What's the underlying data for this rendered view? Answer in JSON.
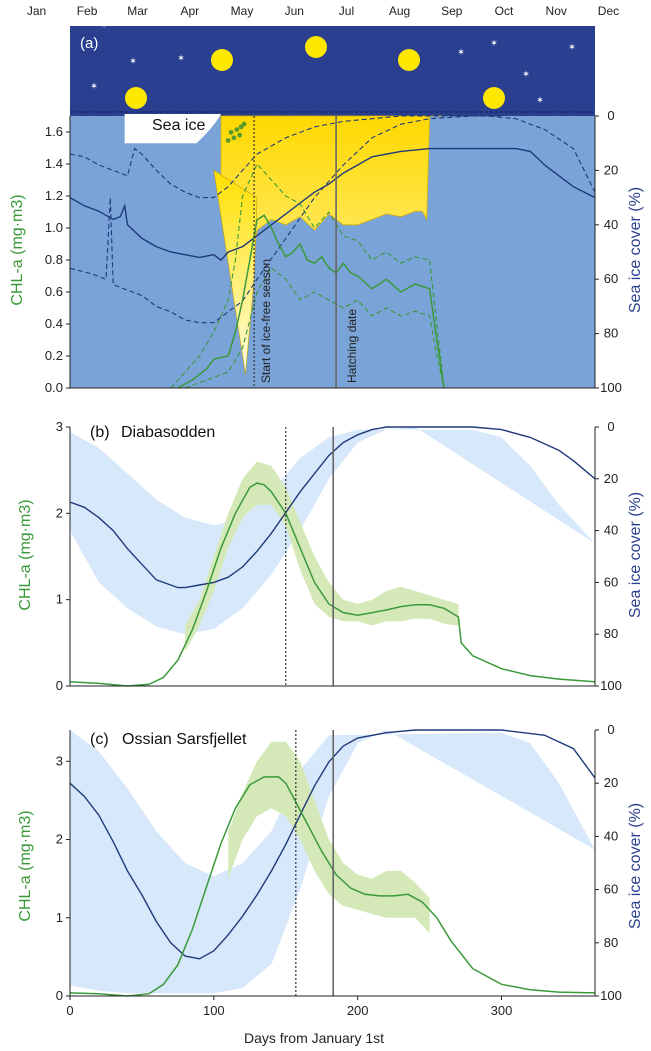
{
  "months": [
    "Jan",
    "Feb",
    "Mar",
    "Apr",
    "May",
    "Jun",
    "Jul",
    "Aug",
    "Sep",
    "Oct",
    "Nov",
    "Dec"
  ],
  "xlabel": "Days from January 1st",
  "colors": {
    "chl": "#3a9a3a",
    "ice": "#1f3a7a",
    "night": "#2a3f8f",
    "panel_a_bg": "#7aa3d8",
    "sun": "#ffe800",
    "band_chl": "#d5e9b8",
    "band_ice": "#d8e8fb"
  },
  "chart_data": [
    {
      "type": "line",
      "panel": "(a)",
      "annotations": [
        "Sea ice",
        "Start of ice-free season",
        "Hatching date"
      ],
      "ylabel": "CHL-a (mg·m3)",
      "ylabel_right": "Sea ice cover (%)",
      "xlim": [
        0,
        365
      ],
      "ylim": [
        0,
        1.7
      ],
      "ylim_right": [
        100,
        0
      ],
      "yticks": [
        "0.0",
        "0.2",
        "0.4",
        "0.6",
        "0.8",
        "1.0",
        "1.2",
        "1.4",
        "1.6"
      ],
      "yticks_right": [
        "0",
        "20",
        "40",
        "60",
        "80",
        "100"
      ],
      "vlines": {
        "ice_free_start": 128,
        "hatching": 185
      },
      "series": [
        {
          "role": "chl",
          "x": [
            75,
            85,
            95,
            100,
            110,
            115,
            120,
            125,
            130,
            135,
            140,
            145,
            150,
            155,
            160,
            165,
            170,
            175,
            180,
            185,
            190,
            195,
            200,
            210,
            220,
            230,
            240,
            250,
            255,
            260
          ],
          "y": [
            0,
            0.05,
            0.12,
            0.18,
            0.2,
            0.35,
            0.55,
            0.8,
            1.05,
            1.08,
            1.0,
            0.9,
            0.82,
            0.85,
            0.9,
            0.8,
            0.78,
            0.82,
            0.75,
            0.72,
            0.78,
            0.72,
            0.7,
            0.62,
            0.68,
            0.6,
            0.65,
            0.62,
            0.3,
            0
          ]
        },
        {
          "role": "chl_lower",
          "x": [
            80,
            95,
            110,
            120,
            130,
            140,
            150,
            160,
            170,
            180,
            190,
            200,
            210,
            220,
            230,
            240,
            250,
            255,
            260
          ],
          "y": [
            0,
            0.05,
            0.1,
            0.25,
            0.6,
            0.75,
            0.68,
            0.55,
            0.6,
            0.55,
            0.5,
            0.55,
            0.45,
            0.5,
            0.45,
            0.48,
            0.45,
            0.2,
            0
          ]
        },
        {
          "role": "chl_upper",
          "x": [
            70,
            80,
            90,
            100,
            110,
            115,
            120,
            130,
            140,
            150,
            160,
            170,
            180,
            190,
            200,
            210,
            220,
            230,
            240,
            250,
            255,
            260
          ],
          "y": [
            0,
            0.1,
            0.2,
            0.35,
            0.55,
            0.8,
            1.2,
            1.4,
            1.3,
            1.2,
            1.15,
            1.0,
            1.1,
            0.95,
            0.92,
            0.8,
            0.85,
            0.78,
            0.82,
            0.8,
            0.4,
            0
          ]
        },
        {
          "role": "ice",
          "x": [
            0,
            10,
            20,
            30,
            35,
            38,
            40,
            50,
            60,
            70,
            80,
            90,
            100,
            105,
            110,
            120,
            130,
            140,
            150,
            160,
            170,
            180,
            190,
            200,
            210,
            230,
            250,
            270,
            290,
            310,
            320,
            330,
            340,
            350,
            365
          ],
          "y": [
            30,
            33,
            35,
            38,
            37,
            33,
            40,
            45,
            48,
            50,
            51,
            52,
            51,
            53,
            50,
            48,
            44,
            40,
            36,
            32,
            28,
            25,
            21,
            18,
            15,
            13,
            12,
            12,
            12,
            12,
            13,
            18,
            22,
            26,
            30
          ]
        },
        {
          "role": "ice_lower",
          "x": [
            0,
            15,
            25,
            28,
            30,
            40,
            50,
            60,
            70,
            80,
            90,
            100,
            110,
            120,
            130,
            150,
            170,
            190,
            210,
            230,
            250,
            280,
            300
          ],
          "y": [
            56,
            58,
            60,
            30,
            62,
            64,
            66,
            70,
            72,
            75,
            76,
            76,
            72,
            68,
            60,
            45,
            30,
            18,
            8,
            3,
            1,
            0,
            0
          ]
        },
        {
          "role": "ice_upper",
          "x": [
            0,
            10,
            20,
            30,
            40,
            45,
            50,
            60,
            70,
            80,
            90,
            100,
            110,
            120,
            130,
            150,
            170,
            190,
            210,
            230,
            250,
            270,
            290,
            310,
            330,
            350,
            365
          ],
          "y": [
            14,
            15,
            18,
            20,
            22,
            12,
            14,
            20,
            25,
            28,
            30,
            30,
            26,
            20,
            14,
            8,
            4,
            2,
            1,
            0,
            0,
            0,
            0,
            1,
            5,
            12,
            28
          ]
        }
      ]
    },
    {
      "type": "line",
      "panel": "(b)",
      "title": "Diabasodden",
      "ylabel": "CHL-a (mg·m3)",
      "ylabel_right": "Sea ice cover (%)",
      "xlim": [
        0,
        365
      ],
      "ylim": [
        0,
        3
      ],
      "ylim_right": [
        100,
        0
      ],
      "yticks": [
        "0",
        "1",
        "2",
        "3"
      ],
      "yticks_right": [
        "0",
        "20",
        "40",
        "60",
        "80",
        "100"
      ],
      "vlines": {
        "ice_free_start": 150,
        "hatching": 183
      },
      "series": [
        {
          "role": "chl",
          "x": [
            0,
            20,
            40,
            55,
            65,
            75,
            85,
            95,
            105,
            115,
            125,
            130,
            135,
            140,
            150,
            160,
            170,
            180,
            190,
            200,
            210,
            220,
            230,
            240,
            250,
            260,
            270,
            272,
            280,
            300,
            320,
            340,
            365
          ],
          "y": [
            0.05,
            0.03,
            0.0,
            0.02,
            0.1,
            0.3,
            0.65,
            1.1,
            1.6,
            2.0,
            2.3,
            2.35,
            2.33,
            2.25,
            2.0,
            1.6,
            1.2,
            0.95,
            0.85,
            0.82,
            0.85,
            0.88,
            0.92,
            0.94,
            0.94,
            0.9,
            0.8,
            0.5,
            0.35,
            0.2,
            0.12,
            0.08,
            0.05
          ]
        },
        {
          "role": "chl_lower",
          "x": [
            80,
            90,
            100,
            110,
            120,
            130,
            140,
            150,
            160,
            170,
            180,
            190,
            200,
            210,
            220,
            230,
            240,
            250,
            260,
            270
          ],
          "y": [
            0.4,
            0.7,
            1.1,
            1.6,
            1.95,
            2.1,
            2.1,
            1.85,
            1.35,
            0.95,
            0.8,
            0.75,
            0.75,
            0.7,
            0.75,
            0.75,
            0.78,
            0.78,
            0.72,
            0.7
          ]
        },
        {
          "role": "chl_upper",
          "x": [
            80,
            90,
            100,
            110,
            120,
            130,
            140,
            150,
            160,
            170,
            180,
            190,
            200,
            210,
            220,
            230,
            240,
            250,
            260,
            270
          ],
          "y": [
            0.7,
            1.0,
            1.5,
            2.0,
            2.4,
            2.6,
            2.55,
            2.3,
            1.9,
            1.5,
            1.2,
            1.0,
            0.95,
            1.0,
            1.1,
            1.15,
            1.1,
            1.05,
            1.0,
            0.95
          ]
        },
        {
          "role": "ice",
          "x": [
            0,
            10,
            20,
            30,
            40,
            50,
            60,
            70,
            75,
            80,
            90,
            100,
            110,
            120,
            130,
            140,
            150,
            160,
            170,
            180,
            190,
            200,
            210,
            220,
            230,
            240,
            280,
            300,
            320,
            340,
            350,
            365
          ],
          "y": [
            29,
            31,
            35,
            40,
            47,
            53,
            59,
            61,
            62,
            62,
            61,
            60,
            58,
            54,
            48,
            41,
            33,
            25,
            18,
            11,
            6,
            3,
            1,
            0,
            0,
            0,
            0,
            1,
            4,
            9,
            13,
            20
          ]
        },
        {
          "role": "ice_lower",
          "x": [
            0,
            20,
            40,
            60,
            80,
            100,
            120,
            140,
            160,
            180,
            200,
            220,
            240
          ],
          "y": [
            40,
            60,
            70,
            77,
            80,
            78,
            70,
            57,
            40,
            20,
            6,
            1,
            0
          ]
        },
        {
          "role": "ice_upper",
          "x": [
            0,
            20,
            40,
            60,
            80,
            100,
            120,
            140,
            160,
            180,
            200,
            280,
            300,
            320,
            340,
            365
          ],
          "y": [
            2,
            8,
            18,
            28,
            35,
            38,
            35,
            25,
            12,
            4,
            1,
            1,
            4,
            15,
            30,
            45
          ]
        }
      ]
    },
    {
      "type": "line",
      "panel": "(c)",
      "title": "Ossian Sarsfjellet",
      "ylabel": "CHL-a (mg·m3)",
      "ylabel_right": "Sea ice cover (%)",
      "xlabel": "Days from January 1st",
      "xlim": [
        0,
        365
      ],
      "ylim": [
        0,
        3.4
      ],
      "ylim_right": [
        100,
        0
      ],
      "xticks": [
        "0",
        "100",
        "200",
        "300"
      ],
      "yticks": [
        "0",
        "1",
        "2",
        "3"
      ],
      "yticks_right": [
        "0",
        "20",
        "40",
        "60",
        "80",
        "100"
      ],
      "vlines": {
        "ice_free_start": 157,
        "hatching": 183
      },
      "series": [
        {
          "role": "chl",
          "x": [
            0,
            20,
            40,
            55,
            65,
            75,
            85,
            95,
            105,
            115,
            125,
            135,
            145,
            150,
            155,
            165,
            175,
            185,
            195,
            205,
            215,
            225,
            235,
            245,
            255,
            265,
            280,
            300,
            320,
            340,
            365
          ],
          "y": [
            0.04,
            0.03,
            0.0,
            0.03,
            0.15,
            0.4,
            0.85,
            1.4,
            1.95,
            2.4,
            2.7,
            2.8,
            2.8,
            2.72,
            2.55,
            2.2,
            1.85,
            1.55,
            1.38,
            1.3,
            1.28,
            1.28,
            1.3,
            1.2,
            1.0,
            0.7,
            0.35,
            0.15,
            0.08,
            0.05,
            0.04
          ]
        },
        {
          "role": "chl_lower",
          "x": [
            110,
            120,
            130,
            140,
            150,
            160,
            170,
            180,
            190,
            200,
            210,
            220,
            230,
            240,
            250
          ],
          "y": [
            1.5,
            2.0,
            2.3,
            2.4,
            2.3,
            2.0,
            1.6,
            1.3,
            1.15,
            1.1,
            1.05,
            1.0,
            1.0,
            1.0,
            0.8
          ]
        },
        {
          "role": "chl_upper",
          "x": [
            110,
            120,
            130,
            140,
            150,
            160,
            170,
            180,
            190,
            200,
            210,
            220,
            230,
            240,
            250
          ],
          "y": [
            2.1,
            2.6,
            3.0,
            3.25,
            3.25,
            3.0,
            2.5,
            2.0,
            1.7,
            1.55,
            1.5,
            1.6,
            1.6,
            1.45,
            1.25
          ]
        },
        {
          "role": "ice",
          "x": [
            0,
            10,
            20,
            30,
            40,
            50,
            60,
            70,
            80,
            90,
            100,
            110,
            120,
            130,
            140,
            150,
            160,
            170,
            180,
            190,
            200,
            220,
            240,
            270,
            300,
            330,
            350,
            365
          ],
          "y": [
            20,
            25,
            32,
            42,
            53,
            62,
            72,
            80,
            85,
            86,
            83,
            77,
            70,
            62,
            53,
            43,
            32,
            21,
            12,
            6,
            3,
            1,
            0,
            0,
            0,
            2,
            7,
            18
          ]
        },
        {
          "role": "ice_lower",
          "x": [
            0,
            20,
            40,
            60,
            80,
            100,
            120,
            140,
            160,
            180,
            200,
            220
          ],
          "y": [
            96,
            98,
            99,
            99,
            99,
            99,
            97,
            88,
            60,
            25,
            5,
            0
          ]
        },
        {
          "role": "ice_upper",
          "x": [
            0,
            20,
            40,
            60,
            80,
            100,
            120,
            140,
            160,
            180,
            300,
            320,
            340,
            365
          ],
          "y": [
            0,
            8,
            22,
            38,
            50,
            55,
            50,
            38,
            15,
            2,
            1,
            5,
            20,
            45
          ]
        }
      ]
    }
  ]
}
